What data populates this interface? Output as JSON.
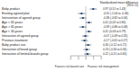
{
  "chart_data": {
    "type": "forest",
    "title": [
      "Standardized mean difference",
      "(95% CI)"
    ],
    "categories": [
      "Baby product",
      "Existing agreed plan",
      "Intervention of agreed group",
      "Age < 65 years",
      "Age > 65 years",
      "Age < 30 years",
      "Interaction of agreed group",
      "Previous treatment",
      "Baby product use",
      "Interaction of brand group",
      "Interaction of limited-brands group"
    ],
    "values": [
      0.97,
      -0.55,
      -0.38,
      0.41,
      -0.39,
      0.41,
      -0.07,
      -0.17,
      0.3,
      0.13,
      0.22
    ],
    "ci_lower": [
      0.51,
      -1.04,
      -0.82,
      0.02,
      -0.86,
      0.03,
      -0.49,
      -0.61,
      -0.12,
      -0.3,
      -0.21
    ],
    "ci_upper": [
      1.43,
      -0.06,
      0.06,
      0.8,
      0.08,
      0.79,
      0.35,
      0.27,
      0.72,
      0.56,
      0.65
    ],
    "value_labels": [
      "0.97 (0.51 to 1.43)",
      "-0.55 (-1.04 to -0.06)",
      "-0.38 (-0.82 to 0.06)",
      "0.41 (0.02 to 0.80)",
      "-0.39 (-0.86 to 0.08)",
      "0.41 (0.03 to 0.79)",
      "-0.07 (-0.49 to 0.35)",
      "-0.17 (-0.61 to 0.27)",
      "0.30 (-0.12 to 0.72)",
      "0.13 (-0.30 to 0.56)",
      "0.22 (-0.21 to 0.65)"
    ],
    "xlim": [
      -2,
      2
    ],
    "xticks": [
      -2,
      -1,
      0,
      1,
      2
    ],
    "x_labels": [
      "Favours risk-based care",
      "Favours risk management"
    ],
    "color": "#1f4e8c"
  }
}
